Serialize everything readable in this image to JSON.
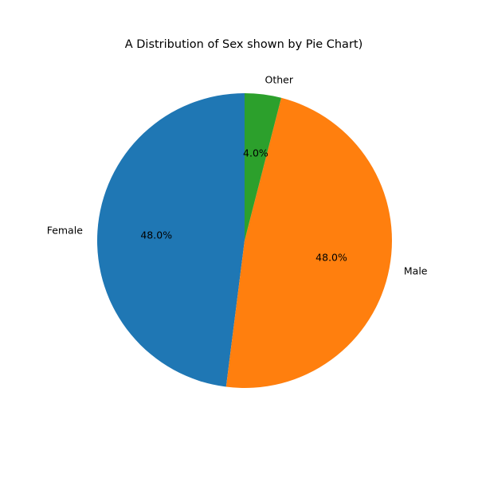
{
  "chart_data": {
    "type": "pie",
    "title": "A Distribution of Sex shown by Pie Chart)",
    "categories": [
      "Female",
      "Male",
      "Other"
    ],
    "values": [
      48.0,
      48.0,
      4.0
    ],
    "value_labels": [
      "48.0%",
      "48.0%",
      "4.0%"
    ],
    "colors": [
      "#1f77b4",
      "#ff7f0e",
      "#2ca02c"
    ],
    "start_angle_deg": 90,
    "direction": "counterclockwise",
    "legend": "none"
  }
}
